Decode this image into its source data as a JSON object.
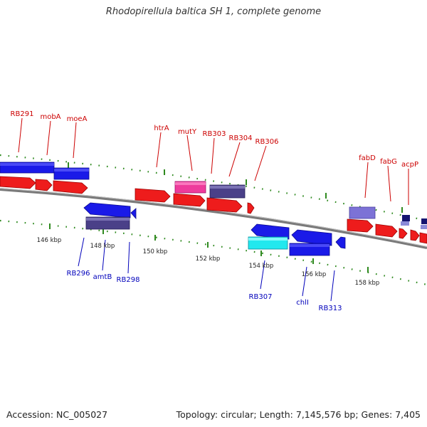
{
  "title": "Rhodopirellula baltica SH 1, complete genome",
  "footer": {
    "accession": "Accession: NC_005027",
    "summary": "Topology: circular; Length: 7,145,576 bp; Genes: 7,405"
  },
  "colors": {
    "label_forward": "#cc0000",
    "label_reverse": "#0000bb",
    "backbone": "#7a7a7a",
    "tick": "#2f8a1f"
  },
  "scale_labels": [
    "146 kbp",
    "148 kbp",
    "150 kbp",
    "152 kbp",
    "154 kbp",
    "156 kbp",
    "158 kbp"
  ],
  "gene_labels": {
    "forward": [
      "RB291",
      "mobA",
      "moeA",
      "htrA",
      "mutY",
      "RB303",
      "RB304",
      "RB306",
      "fabD",
      "fabG",
      "acpP"
    ],
    "reverse": [
      "RB296",
      "amtB",
      "RB298",
      "RB307",
      "chlI",
      "RB313"
    ]
  }
}
